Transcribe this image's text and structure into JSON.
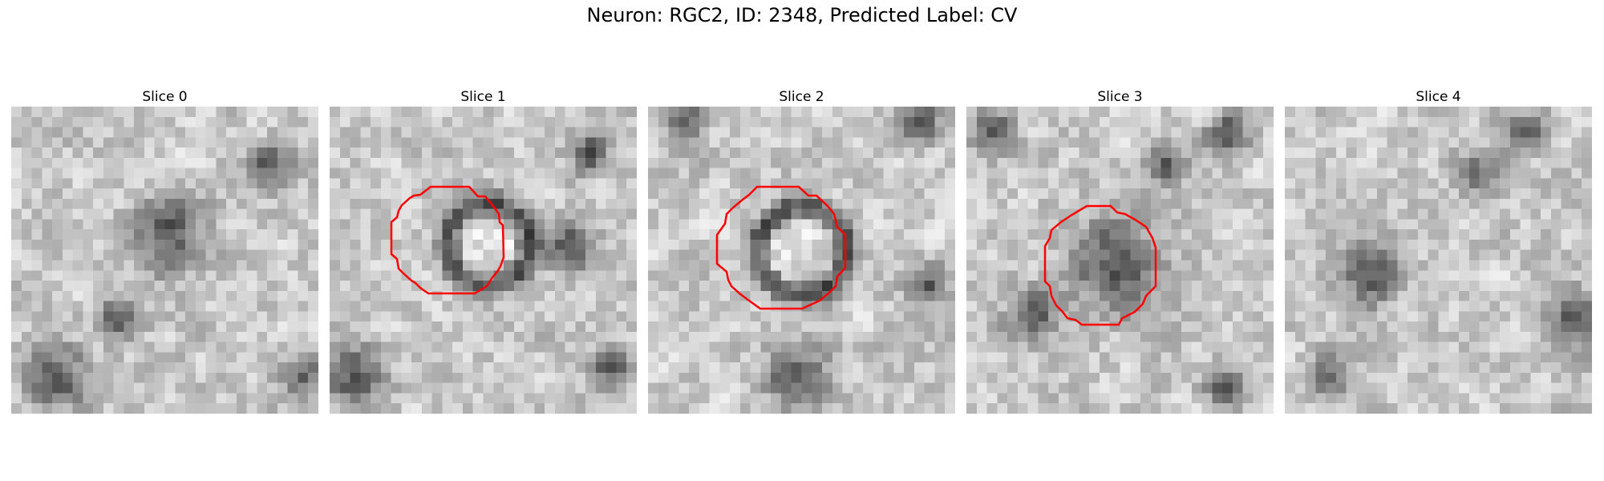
{
  "figure": {
    "title": "Neuron: RGC2, ID: 2348, Predicted Label: CV",
    "contour_color": "#ff0000",
    "panels": [
      {
        "title": "Slice 0",
        "has_contour": false
      },
      {
        "title": "Slice 1",
        "has_contour": true
      },
      {
        "title": "Slice 2",
        "has_contour": true
      },
      {
        "title": "Slice 3",
        "has_contour": true
      },
      {
        "title": "Slice 4",
        "has_contour": false
      }
    ]
  }
}
